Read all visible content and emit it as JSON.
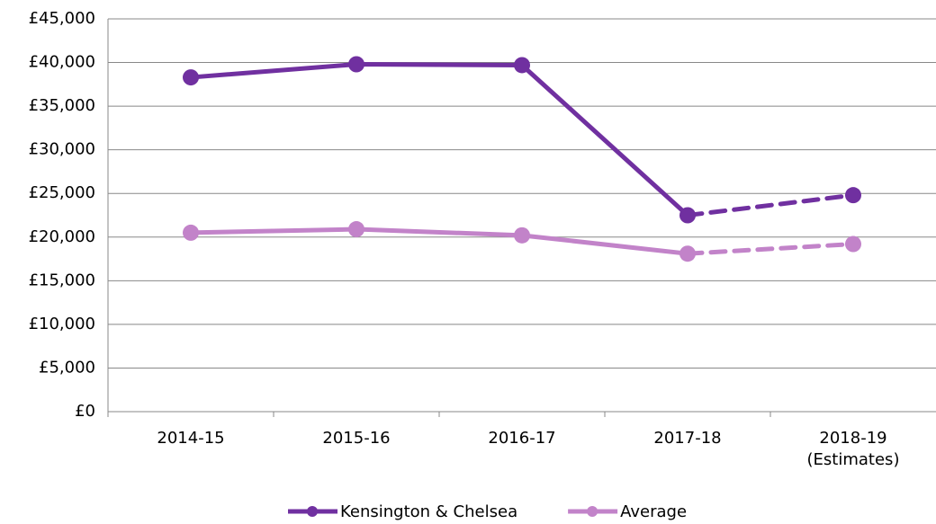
{
  "chart_data": {
    "type": "line",
    "categories": [
      "2014-15",
      "2015-16",
      "2016-17",
      "2017-18",
      "2018-19 (Estimates)"
    ],
    "series": [
      {
        "name": "Kensington & Chelsea",
        "color": "#7030a0",
        "values": [
          38300,
          39800,
          39700,
          22500,
          24800
        ]
      },
      {
        "name": "Average",
        "color": "#c283c9",
        "values": [
          20500,
          20900,
          20200,
          18100,
          19200
        ]
      }
    ],
    "dashed_from": "2017-18",
    "ylim": [
      0,
      45000
    ],
    "yticks": [
      {
        "value": 0,
        "label": "£0"
      },
      {
        "value": 5000,
        "label": "£5,000"
      },
      {
        "value": 10000,
        "label": "£10,000"
      },
      {
        "value": 15000,
        "label": "£15,000"
      },
      {
        "value": 20000,
        "label": "£20,000"
      },
      {
        "value": 25000,
        "label": "£25,000"
      },
      {
        "value": 30000,
        "label": "£30,000"
      },
      {
        "value": 35000,
        "label": "£35,000"
      },
      {
        "value": 40000,
        "label": "£40,000"
      },
      {
        "value": 45000,
        "label": "£45,000"
      }
    ],
    "grid": true,
    "legend": "bottom"
  }
}
